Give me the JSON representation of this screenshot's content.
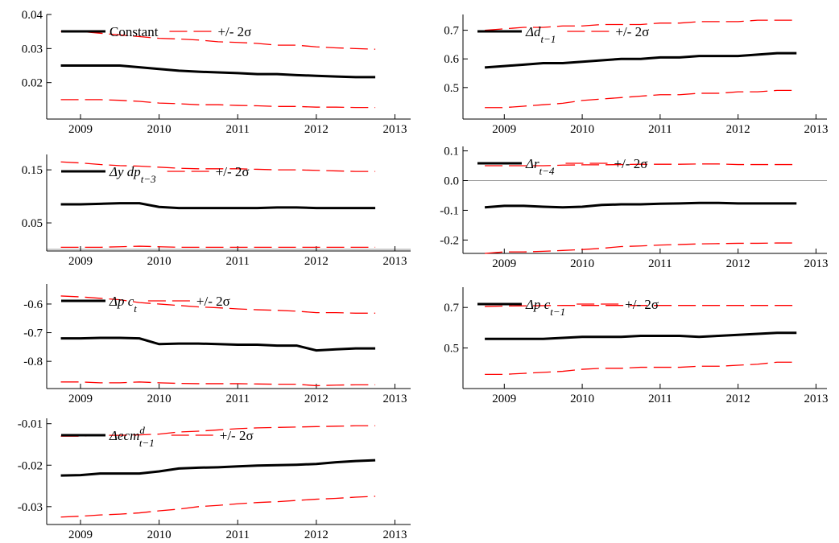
{
  "chart_data": [
    {
      "type": "line",
      "xlim": [
        2008.57,
        2013.2
      ],
      "xticks": [
        2009,
        2010,
        2011,
        2012,
        2013
      ],
      "ylim": [
        0.0093,
        0.04
      ],
      "yticks": [
        0.02,
        0.03,
        0.04
      ],
      "x": [
        2008.75,
        2009,
        2009.25,
        2009.5,
        2009.75,
        2010,
        2010.25,
        2010.5,
        2010.75,
        2011,
        2011.25,
        2011.5,
        2011.75,
        2012,
        2012.25,
        2012.5,
        2012.75
      ],
      "series": [
        {
          "name": "Constant",
          "color": "#000000",
          "values": [
            0.025,
            0.025,
            0.025,
            0.025,
            0.0245,
            0.024,
            0.0235,
            0.0232,
            0.023,
            0.0228,
            0.0225,
            0.0225,
            0.0222,
            0.022,
            0.0218,
            0.0216,
            0.0216
          ]
        },
        {
          "name": "+/- 2σ",
          "color": "#ff0000",
          "dashed": true,
          "values": [
            0.035,
            0.035,
            0.0345,
            0.034,
            0.0335,
            0.033,
            0.0328,
            0.0325,
            0.032,
            0.0318,
            0.0315,
            0.031,
            0.031,
            0.0305,
            0.0302,
            0.03,
            0.0298
          ]
        },
        {
          "color": "#ff0000",
          "dashed": true,
          "values": [
            0.015,
            0.015,
            0.015,
            0.0148,
            0.0145,
            0.014,
            0.0138,
            0.0135,
            0.0135,
            0.0133,
            0.0132,
            0.013,
            0.013,
            0.0128,
            0.0128,
            0.0127,
            0.0127
          ]
        }
      ]
    },
    {
      "type": "line",
      "xlim": [
        2008.47,
        2013.14
      ],
      "xticks": [
        2009,
        2010,
        2011,
        2012,
        2013
      ],
      "ylim": [
        0.39,
        0.755
      ],
      "yticks": [
        0.5,
        0.6,
        0.7
      ],
      "x": [
        2008.75,
        2009,
        2009.25,
        2009.5,
        2009.75,
        2010,
        2010.25,
        2010.5,
        2010.75,
        2011,
        2011.25,
        2011.5,
        2011.75,
        2012,
        2012.25,
        2012.5,
        2012.75
      ],
      "series": [
        {
          "name": "Δd",
          "name_sub": "t−1",
          "color": "#000000",
          "values": [
            0.57,
            0.575,
            0.58,
            0.585,
            0.585,
            0.59,
            0.595,
            0.6,
            0.6,
            0.605,
            0.605,
            0.61,
            0.61,
            0.61,
            0.615,
            0.62,
            0.62
          ]
        },
        {
          "name": "+/- 2σ",
          "color": "#ff0000",
          "dashed": true,
          "values": [
            0.7,
            0.705,
            0.71,
            0.71,
            0.715,
            0.715,
            0.72,
            0.72,
            0.72,
            0.725,
            0.725,
            0.73,
            0.73,
            0.73,
            0.735,
            0.735,
            0.735
          ]
        },
        {
          "color": "#ff0000",
          "dashed": true,
          "values": [
            0.43,
            0.43,
            0.435,
            0.44,
            0.445,
            0.455,
            0.46,
            0.465,
            0.47,
            0.475,
            0.475,
            0.48,
            0.48,
            0.485,
            0.485,
            0.49,
            0.49
          ]
        }
      ]
    },
    {
      "type": "line",
      "xlim": [
        2008.57,
        2013.2
      ],
      "xticks": [
        2009,
        2010,
        2011,
        2012,
        2013
      ],
      "ylim": [
        -0.003,
        0.179
      ],
      "yticks": [
        0.05,
        0.15
      ],
      "hline": 0,
      "x": [
        2008.75,
        2009,
        2009.25,
        2009.5,
        2009.75,
        2010,
        2010.25,
        2010.5,
        2010.75,
        2011,
        2011.25,
        2011.5,
        2011.75,
        2012,
        2012.25,
        2012.5,
        2012.75
      ],
      "series": [
        {
          "name": "Δy dp",
          "name_sub": "t−3",
          "color": "#000000",
          "values": [
            0.085,
            0.085,
            0.086,
            0.087,
            0.087,
            0.08,
            0.078,
            0.078,
            0.078,
            0.078,
            0.078,
            0.079,
            0.079,
            0.078,
            0.078,
            0.078,
            0.078
          ]
        },
        {
          "name": "+/- 2σ",
          "color": "#ff0000",
          "dashed": true,
          "values": [
            0.165,
            0.163,
            0.16,
            0.158,
            0.157,
            0.155,
            0.153,
            0.152,
            0.152,
            0.152,
            0.151,
            0.15,
            0.15,
            0.149,
            0.148,
            0.147,
            0.147
          ]
        },
        {
          "color": "#ff0000",
          "dashed": true,
          "values": [
            0.004,
            0.004,
            0.004,
            0.005,
            0.006,
            0.005,
            0.004,
            0.004,
            0.004,
            0.004,
            0.004,
            0.004,
            0.004,
            0.004,
            0.004,
            0.004,
            0.004
          ]
        }
      ]
    },
    {
      "type": "line",
      "xlim": [
        2008.47,
        2013.14
      ],
      "xticks": [
        2009,
        2010,
        2011,
        2012,
        2013
      ],
      "ylim": [
        -0.245,
        0.115
      ],
      "yticks": [
        -0.2,
        -0.1,
        {
          "value": 0,
          "label": "0.0"
        },
        0.1
      ],
      "hline": 0,
      "x": [
        2008.75,
        2009,
        2009.25,
        2009.5,
        2009.75,
        2010,
        2010.25,
        2010.5,
        2010.75,
        2011,
        2011.25,
        2011.5,
        2011.75,
        2012,
        2012.25,
        2012.5,
        2012.75
      ],
      "series": [
        {
          "name": "Δr",
          "name_sub": "t−4",
          "color": "#000000",
          "values": [
            -0.09,
            -0.085,
            -0.085,
            -0.088,
            -0.09,
            -0.088,
            -0.082,
            -0.08,
            -0.08,
            -0.078,
            -0.077,
            -0.075,
            -0.075,
            -0.077,
            -0.077,
            -0.077,
            -0.077
          ]
        },
        {
          "name": "+/- 2σ",
          "color": "#ff0000",
          "dashed": true,
          "values": [
            0.05,
            0.05,
            0.05,
            0.05,
            0.052,
            0.053,
            0.053,
            0.054,
            0.055,
            0.055,
            0.055,
            0.056,
            0.056,
            0.054,
            0.054,
            0.054,
            0.054
          ]
        },
        {
          "color": "#ff0000",
          "dashed": true,
          "values": [
            -0.245,
            -0.24,
            -0.24,
            -0.238,
            -0.235,
            -0.232,
            -0.228,
            -0.222,
            -0.22,
            -0.217,
            -0.215,
            -0.213,
            -0.212,
            -0.211,
            -0.211,
            -0.21,
            -0.21
          ]
        }
      ]
    },
    {
      "type": "line",
      "xlim": [
        2008.57,
        2013.2
      ],
      "xticks": [
        2009,
        2010,
        2011,
        2012,
        2013
      ],
      "ylim": [
        -0.895,
        -0.53
      ],
      "yticks": [
        -0.8,
        -0.7,
        -0.6
      ],
      "x": [
        2008.75,
        2009,
        2009.25,
        2009.5,
        2009.75,
        2010,
        2010.25,
        2010.5,
        2010.75,
        2011,
        2011.25,
        2011.5,
        2011.75,
        2012,
        2012.25,
        2012.5,
        2012.75
      ],
      "series": [
        {
          "name": "Δp c",
          "name_sub": "t",
          "color": "#000000",
          "values": [
            -0.72,
            -0.72,
            -0.718,
            -0.718,
            -0.72,
            -0.74,
            -0.738,
            -0.738,
            -0.74,
            -0.742,
            -0.742,
            -0.745,
            -0.745,
            -0.762,
            -0.758,
            -0.755,
            -0.755
          ]
        },
        {
          "name": "+/- 2σ",
          "color": "#ff0000",
          "dashed": true,
          "values": [
            -0.572,
            -0.575,
            -0.58,
            -0.585,
            -0.595,
            -0.6,
            -0.605,
            -0.61,
            -0.613,
            -0.617,
            -0.62,
            -0.622,
            -0.625,
            -0.63,
            -0.63,
            -0.632,
            -0.632
          ]
        },
        {
          "color": "#ff0000",
          "dashed": true,
          "values": [
            -0.872,
            -0.872,
            -0.875,
            -0.875,
            -0.872,
            -0.875,
            -0.877,
            -0.878,
            -0.878,
            -0.878,
            -0.879,
            -0.88,
            -0.88,
            -0.885,
            -0.883,
            -0.882,
            -0.882
          ]
        }
      ]
    },
    {
      "type": "line",
      "xlim": [
        2008.47,
        2013.14
      ],
      "xticks": [
        2009,
        2010,
        2011,
        2012,
        2013
      ],
      "ylim": [
        0.3,
        0.8
      ],
      "yticks": [
        0.5,
        0.7
      ],
      "x": [
        2008.75,
        2009,
        2009.25,
        2009.5,
        2009.75,
        2010,
        2010.25,
        2010.5,
        2010.75,
        2011,
        2011.25,
        2011.5,
        2011.75,
        2012,
        2012.25,
        2012.5,
        2012.75
      ],
      "series": [
        {
          "name": "Δp c",
          "name_sub": "t−1",
          "color": "#000000",
          "values": [
            0.545,
            0.545,
            0.545,
            0.545,
            0.55,
            0.555,
            0.555,
            0.555,
            0.56,
            0.56,
            0.56,
            0.555,
            0.56,
            0.565,
            0.57,
            0.575,
            0.575
          ]
        },
        {
          "name": "+/- 2σ",
          "color": "#ff0000",
          "dashed": true,
          "values": [
            0.705,
            0.707,
            0.708,
            0.709,
            0.71,
            0.71,
            0.71,
            0.71,
            0.71,
            0.71,
            0.71,
            0.71,
            0.71,
            0.71,
            0.71,
            0.71,
            0.71
          ]
        },
        {
          "color": "#ff0000",
          "dashed": true,
          "values": [
            0.37,
            0.37,
            0.375,
            0.38,
            0.385,
            0.395,
            0.4,
            0.4,
            0.405,
            0.405,
            0.405,
            0.41,
            0.41,
            0.415,
            0.42,
            0.43,
            0.43
          ]
        }
      ]
    },
    {
      "type": "line",
      "xlim": [
        2008.57,
        2013.2
      ],
      "xticks": [
        2009,
        2010,
        2011,
        2012,
        2013
      ],
      "ylim": [
        -0.0343,
        -0.0087
      ],
      "yticks": [
        -0.03,
        -0.02,
        -0.01
      ],
      "x": [
        2008.75,
        2009,
        2009.25,
        2009.5,
        2009.75,
        2010,
        2010.25,
        2010.5,
        2010.75,
        2011,
        2011.25,
        2011.5,
        2011.75,
        2012,
        2012.25,
        2012.5,
        2012.75
      ],
      "series": [
        {
          "name": "Δecm",
          "name_sup": "d",
          "name_sub": "t−1",
          "color": "#000000",
          "values": [
            -0.0225,
            -0.0224,
            -0.022,
            -0.022,
            -0.022,
            -0.0215,
            -0.0208,
            -0.0206,
            -0.0205,
            -0.0203,
            -0.0201,
            -0.02,
            -0.0199,
            -0.0197,
            -0.0193,
            -0.019,
            -0.0188
          ]
        },
        {
          "name": "+/- 2σ",
          "color": "#ff0000",
          "dashed": true,
          "values": [
            -0.013,
            -0.013,
            -0.0128,
            -0.0128,
            -0.0127,
            -0.0125,
            -0.012,
            -0.0118,
            -0.0115,
            -0.0112,
            -0.011,
            -0.0109,
            -0.0108,
            -0.0107,
            -0.0106,
            -0.0105,
            -0.0105
          ]
        },
        {
          "color": "#ff0000",
          "dashed": true,
          "values": [
            -0.0325,
            -0.0323,
            -0.032,
            -0.0318,
            -0.0315,
            -0.031,
            -0.0306,
            -0.03,
            -0.0297,
            -0.0293,
            -0.029,
            -0.0288,
            -0.0285,
            -0.0282,
            -0.028,
            -0.0277,
            -0.0275
          ]
        }
      ]
    }
  ]
}
